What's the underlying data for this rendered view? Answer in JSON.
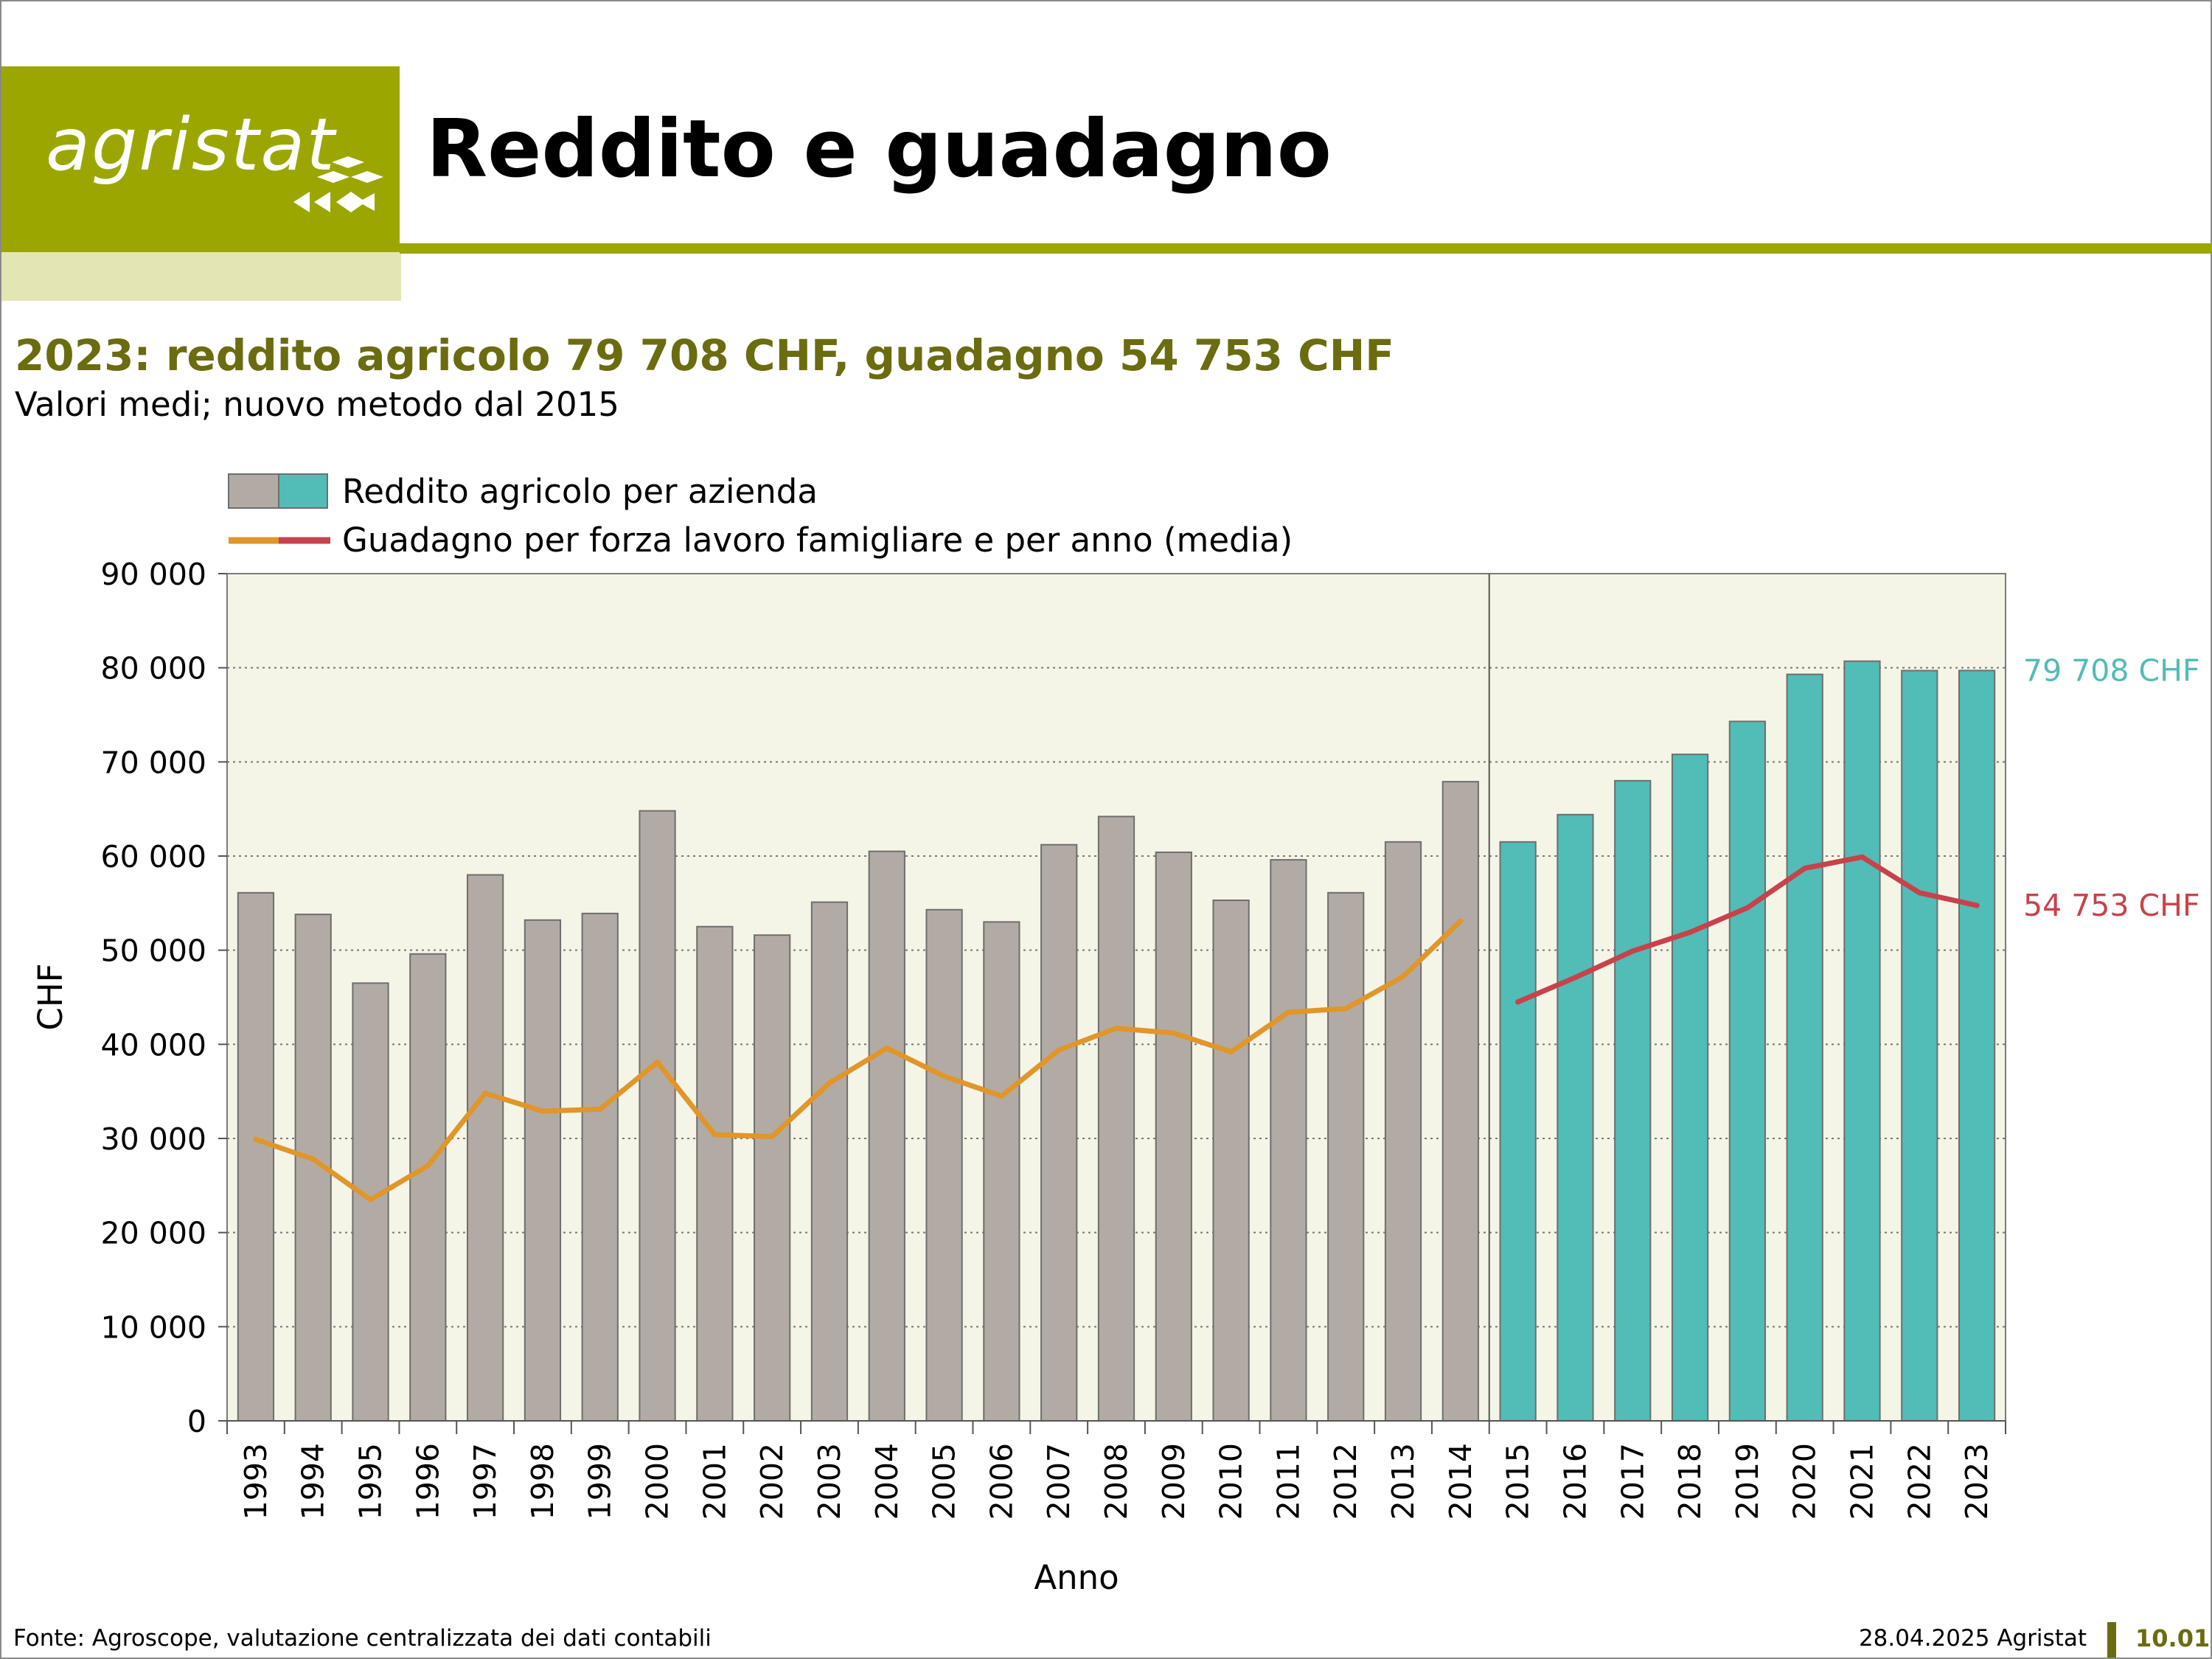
{
  "brand": {
    "logo_text": "agristat",
    "olive": "#9ba700",
    "olive_light": "#e3e6b4",
    "olive_dark": "#6b6c0f"
  },
  "page": {
    "title": "Reddito e guadagno",
    "headline": "2023: reddito agricolo 79 708 CHF, guadagno 54 753 CHF",
    "subtitle": "Valori medi; nuovo metodo dal 2015"
  },
  "footer": {
    "source": "Fonte: Agroscope, valutazione centralizzata dei dati contabili",
    "date": "28.04.2025 Agristat",
    "page_number": "10.01"
  },
  "chart_data": {
    "type": "bar",
    "categories": [
      "1993",
      "1994",
      "1995",
      "1996",
      "1997",
      "1998",
      "1999",
      "2000",
      "2001",
      "2002",
      "2003",
      "2004",
      "2005",
      "2006",
      "2007",
      "2008",
      "2009",
      "2010",
      "2011",
      "2012",
      "2013",
      "2014",
      "2015",
      "2016",
      "2017",
      "2018",
      "2019",
      "2020",
      "2021",
      "2022",
      "2023"
    ],
    "series": [
      {
        "name": "Reddito agricolo per azienda",
        "type": "bar",
        "values": [
          56100,
          53800,
          46500,
          49600,
          58000,
          53200,
          53900,
          64800,
          52500,
          51600,
          55100,
          60500,
          54300,
          53000,
          61200,
          64200,
          60400,
          55300,
          59600,
          56100,
          61500,
          67900,
          61500,
          64400,
          68000,
          70800,
          74300,
          79300,
          80700,
          79700,
          79708
        ],
        "colors": {
          "before_2015": "#b2aba5",
          "from_2015": "#52bcb6"
        }
      },
      {
        "name": "Guadagno per forza lavoro famigliare e per anno (media)",
        "type": "line",
        "values": [
          29900,
          27800,
          23500,
          27100,
          34800,
          32900,
          33100,
          38100,
          30400,
          30200,
          35900,
          39600,
          36600,
          34500,
          39400,
          41700,
          41200,
          39200,
          43400,
          43800,
          47200,
          53100,
          44500,
          47100,
          49900,
          51900,
          54500,
          58700,
          59900,
          56100,
          54753
        ],
        "colors": {
          "before_2015": "#e0962a",
          "from_2015": "#c8424b"
        }
      }
    ],
    "method_break_after": "2014",
    "xlabel": "Anno",
    "ylabel": "CHF",
    "ylim": [
      0,
      90000
    ],
    "yticks": [
      "0",
      "10 000",
      "20 000",
      "30 000",
      "40 000",
      "50 000",
      "60 000",
      "70 000",
      "80 000",
      "90 000"
    ],
    "grid": "horizontal dotted",
    "legend_position": "top-left",
    "annotations": {
      "bar_last": "79 708 CHF",
      "line_last": "54 753 CHF"
    }
  }
}
